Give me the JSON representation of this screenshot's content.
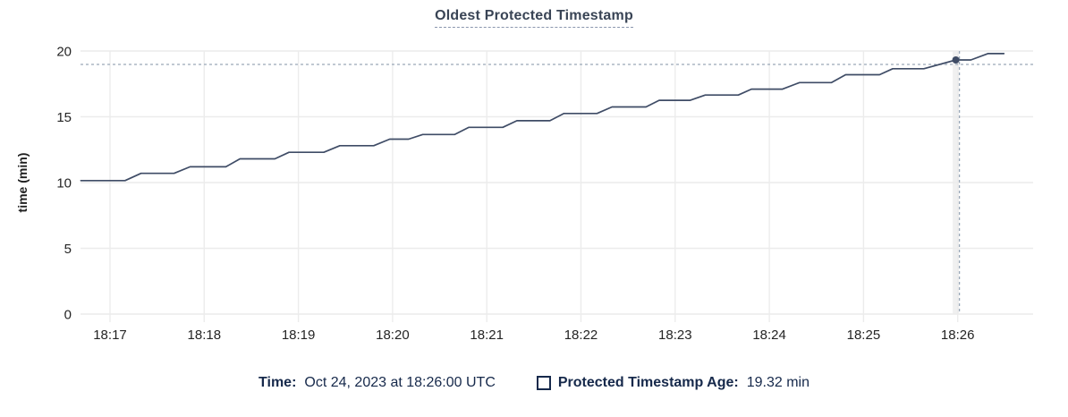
{
  "chart_data": {
    "type": "line",
    "title": "Oldest Protected Timestamp",
    "xlabel": "",
    "ylabel": "time (min)",
    "x_ticks": [
      "18:17",
      "18:18",
      "18:19",
      "18:20",
      "18:21",
      "18:22",
      "18:23",
      "18:24",
      "18:25",
      "18:26"
    ],
    "y_ticks": [
      0,
      5,
      10,
      15,
      20
    ],
    "ylim": [
      0,
      20
    ],
    "x_range_minutes_from_1817": [
      -0.31,
      9.8
    ],
    "grid": true,
    "legend_position": "bottom",
    "series": [
      {
        "name": "Protected Timestamp Age",
        "unit": "min",
        "points": [
          [
            -0.31,
            10.15
          ],
          [
            0.16,
            10.15
          ],
          [
            0.33,
            10.7
          ],
          [
            0.68,
            10.7
          ],
          [
            0.85,
            11.2
          ],
          [
            1.23,
            11.2
          ],
          [
            1.38,
            11.8
          ],
          [
            1.75,
            11.8
          ],
          [
            1.9,
            12.3
          ],
          [
            2.27,
            12.3
          ],
          [
            2.44,
            12.8
          ],
          [
            2.8,
            12.8
          ],
          [
            2.97,
            13.3
          ],
          [
            3.17,
            13.3
          ],
          [
            3.32,
            13.65
          ],
          [
            3.66,
            13.65
          ],
          [
            3.81,
            14.2
          ],
          [
            4.17,
            14.2
          ],
          [
            4.32,
            14.7
          ],
          [
            4.67,
            14.7
          ],
          [
            4.82,
            15.25
          ],
          [
            5.17,
            15.25
          ],
          [
            5.33,
            15.75
          ],
          [
            5.69,
            15.75
          ],
          [
            5.83,
            16.25
          ],
          [
            6.16,
            16.25
          ],
          [
            6.32,
            16.65
          ],
          [
            6.67,
            16.65
          ],
          [
            6.81,
            17.1
          ],
          [
            7.14,
            17.1
          ],
          [
            7.32,
            17.6
          ],
          [
            7.66,
            17.6
          ],
          [
            7.81,
            18.2
          ],
          [
            8.17,
            18.2
          ],
          [
            8.31,
            18.65
          ],
          [
            8.64,
            18.65
          ],
          [
            8.98,
            19.32
          ],
          [
            9.14,
            19.32
          ],
          [
            9.32,
            19.8
          ],
          [
            9.49,
            19.8
          ]
        ]
      }
    ],
    "hover": {
      "x_tick": "18:26",
      "t": 8.98,
      "value": 19.32,
      "time_label": "Oct 24, 2023 at 18:26:00 UTC",
      "value_label": "19.32 min"
    }
  },
  "legend": {
    "time_label": "Time:",
    "time_value": "Oct 24, 2023 at 18:26:00 UTC",
    "series_label": "Protected Timestamp Age:",
    "series_value": "19.32 min"
  },
  "colors": {
    "line": "#3f4c66",
    "dot": "#3f4c66",
    "title": "#394455",
    "title_underline": "#8a96ad",
    "crosshair": "#9aa8b8",
    "gridline": "#ececec",
    "hover_band": "#f0f0f0",
    "tick_label": "#242424",
    "axis_title": "#1f1f1f",
    "legend_text": "#16294b"
  }
}
